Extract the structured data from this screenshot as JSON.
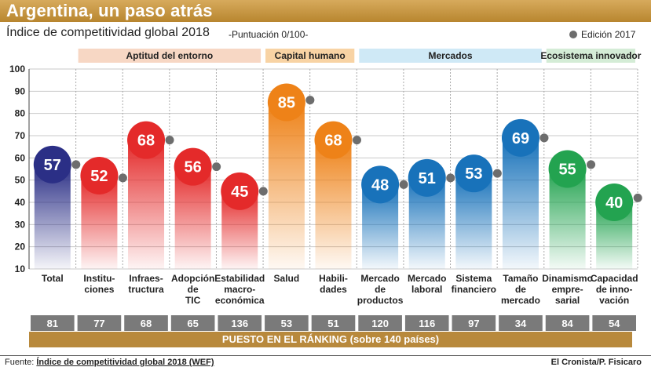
{
  "header": {
    "title": "Argentina, un paso atrás",
    "subtitle": "Índice de competitividad global 2018",
    "subtitle_note": "-Puntuación 0/100-",
    "legend_label": "Edición 2017"
  },
  "footer": {
    "source_prefix": "Fuente:",
    "source": "Índice de competitividad global 2018 (WEF)",
    "credit": "El Cronista/P. Fisicaro"
  },
  "chart_data": {
    "type": "bar",
    "ylim": [
      10,
      100
    ],
    "yticks": [
      10,
      20,
      30,
      40,
      50,
      60,
      70,
      80,
      90,
      100
    ],
    "grid": true,
    "legend_position": "top-right",
    "groups": [
      {
        "label": "Aptitud del entorno",
        "start": 1,
        "end": 4,
        "color": "#f7d7c4"
      },
      {
        "label": "Capital humano",
        "start": 5,
        "end": 6,
        "color": "#f8d3a4"
      },
      {
        "label": "Mercados",
        "start": 7,
        "end": 10,
        "color": "#cfe9f6"
      },
      {
        "label": "Ecosistema innovador",
        "start": 11,
        "end": 12,
        "color": "#d4ecd6"
      }
    ],
    "categories": [
      "Total",
      "Institu-\nciones",
      "Infraes-\ntructura",
      "Adopción\nde\nTIC",
      "Estabilidad\nmacro-\neconómica",
      "Salud",
      "Habili-\ndades",
      "Mercado\nde\nproductos",
      "Mercado\nlaboral",
      "Sistema\nfinanciero",
      "Tamaño\nde\nmercado",
      "Dinamismo\nempre-\nsarial",
      "Capacidad\nde inno-\nvación"
    ],
    "series": [
      {
        "name": "2018",
        "values": [
          57,
          52,
          68,
          56,
          45,
          85,
          68,
          48,
          51,
          53,
          69,
          55,
          40
        ]
      },
      {
        "name": "Edición 2017",
        "values": [
          57,
          51,
          68,
          56,
          45,
          86,
          68,
          48,
          51,
          53,
          69,
          57,
          42
        ]
      }
    ],
    "colors": [
      "#2b2f86",
      "#e42a2a",
      "#e42a2a",
      "#e42a2a",
      "#e42a2a",
      "#ee8218",
      "#ee8218",
      "#1872ba",
      "#1872ba",
      "#1872ba",
      "#1872ba",
      "#23a350",
      "#23a350"
    ],
    "ranking_title": "PUESTO EN EL RÁNKING (sobre 140 países)",
    "ranking": [
      81,
      77,
      68,
      65,
      136,
      53,
      51,
      120,
      116,
      97,
      34,
      84,
      54
    ]
  }
}
